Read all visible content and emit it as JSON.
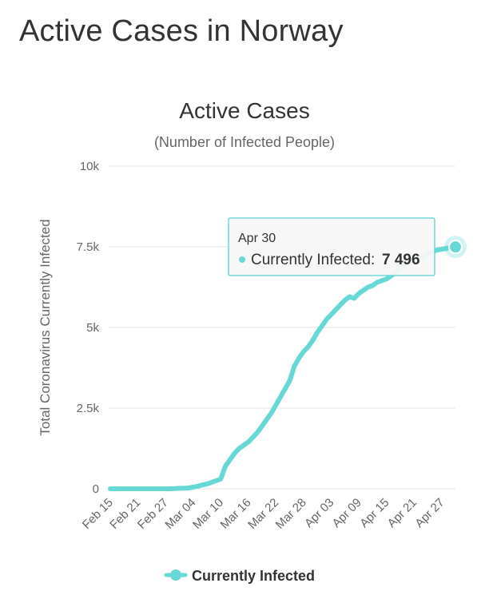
{
  "page": {
    "title": "Active Cases in Norway"
  },
  "chart_data": {
    "type": "line",
    "title": "Active Cases",
    "subtitle": "(Number of Infected People)",
    "ylabel": "Total Coronavirus Currently Infected",
    "xlabel": "",
    "ylim": [
      0,
      10000
    ],
    "y_ticks": [
      "0",
      "2.5k",
      "5k",
      "7.5k",
      "10k"
    ],
    "y_tick_values": [
      0,
      2500,
      5000,
      7500,
      10000
    ],
    "x_ticks": [
      "Feb 15",
      "Feb 21",
      "Feb 27",
      "Mar 04",
      "Mar 10",
      "Mar 16",
      "Mar 22",
      "Mar 28",
      "Apr 03",
      "Apr 09",
      "Apr 15",
      "Apr 21",
      "Apr 27"
    ],
    "categories": [
      "Feb 15",
      "Feb 16",
      "Feb 17",
      "Feb 18",
      "Feb 19",
      "Feb 20",
      "Feb 21",
      "Feb 22",
      "Feb 23",
      "Feb 24",
      "Feb 25",
      "Feb 26",
      "Feb 27",
      "Feb 28",
      "Feb 29",
      "Mar 01",
      "Mar 02",
      "Mar 03",
      "Mar 04",
      "Mar 05",
      "Mar 06",
      "Mar 07",
      "Mar 08",
      "Mar 09",
      "Mar 10",
      "Mar 11",
      "Mar 12",
      "Mar 13",
      "Mar 14",
      "Mar 15",
      "Mar 16",
      "Mar 17",
      "Mar 18",
      "Mar 19",
      "Mar 20",
      "Mar 21",
      "Mar 22",
      "Mar 23",
      "Mar 24",
      "Mar 25",
      "Mar 26",
      "Mar 27",
      "Mar 28",
      "Mar 29",
      "Mar 30",
      "Mar 31",
      "Apr 01",
      "Apr 02",
      "Apr 03",
      "Apr 04",
      "Apr 05",
      "Apr 06",
      "Apr 07",
      "Apr 08",
      "Apr 09",
      "Apr 10",
      "Apr 11",
      "Apr 12",
      "Apr 13",
      "Apr 14",
      "Apr 15",
      "Apr 16",
      "Apr 17",
      "Apr 18",
      "Apr 19",
      "Apr 20",
      "Apr 21",
      "Apr 22",
      "Apr 23",
      "Apr 24",
      "Apr 25",
      "Apr 26",
      "Apr 27",
      "Apr 28",
      "Apr 29",
      "Apr 30"
    ],
    "series": [
      {
        "name": "Currently Infected",
        "color": "#68d8d6",
        "values": [
          0,
          0,
          0,
          0,
          0,
          0,
          0,
          0,
          0,
          0,
          0,
          0,
          1,
          1,
          5,
          15,
          20,
          25,
          50,
          80,
          120,
          150,
          200,
          250,
          300,
          700,
          900,
          1100,
          1250,
          1350,
          1450,
          1600,
          1750,
          1950,
          2150,
          2350,
          2600,
          2850,
          3100,
          3350,
          3800,
          4050,
          4250,
          4400,
          4600,
          4850,
          5050,
          5250,
          5400,
          5550,
          5700,
          5850,
          5950,
          5900,
          6050,
          6150,
          6250,
          6300,
          6400,
          6450,
          6500,
          6600,
          6700,
          6800,
          6900,
          7000,
          7100,
          7150,
          7200,
          7300,
          7350,
          7400,
          7420,
          7450,
          7480,
          7496
        ]
      }
    ],
    "legend": "bottom-center",
    "grid": true,
    "tooltip": {
      "date": "Apr 30",
      "series": "Currently Infected:",
      "value": "7 496"
    }
  }
}
